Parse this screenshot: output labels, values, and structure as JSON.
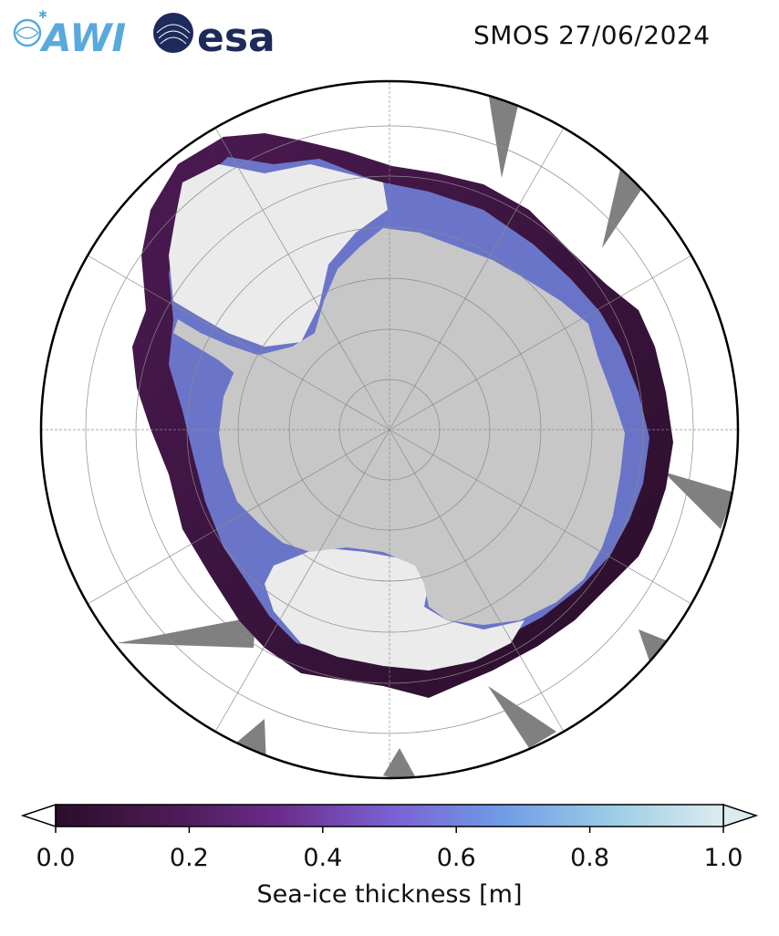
{
  "header": {
    "title": "SMOS 27/06/2024",
    "logos": [
      {
        "name": "awi-logo",
        "text": "AWI"
      },
      {
        "name": "esa-logo",
        "text": "esa"
      }
    ]
  },
  "map": {
    "projection": "south-polar-stereographic",
    "colors": {
      "land": "#c7c7c7",
      "thick_ice": "#ebebeb",
      "missing_data": "#808080",
      "ocean": "#ffffff",
      "grid": "#8a8a8a"
    }
  },
  "colorbar": {
    "label": "Sea-ice thickness [m]",
    "ticks": [
      "0.0",
      "0.2",
      "0.4",
      "0.6",
      "0.8",
      "1.0"
    ],
    "min": 0.0,
    "max": 1.0,
    "extend": "both",
    "colors": [
      "#2a0e2a",
      "#4b1a52",
      "#6a2c8a",
      "#7b5fd2",
      "#6f9be6",
      "#9bcde6",
      "#dcecee"
    ]
  }
}
